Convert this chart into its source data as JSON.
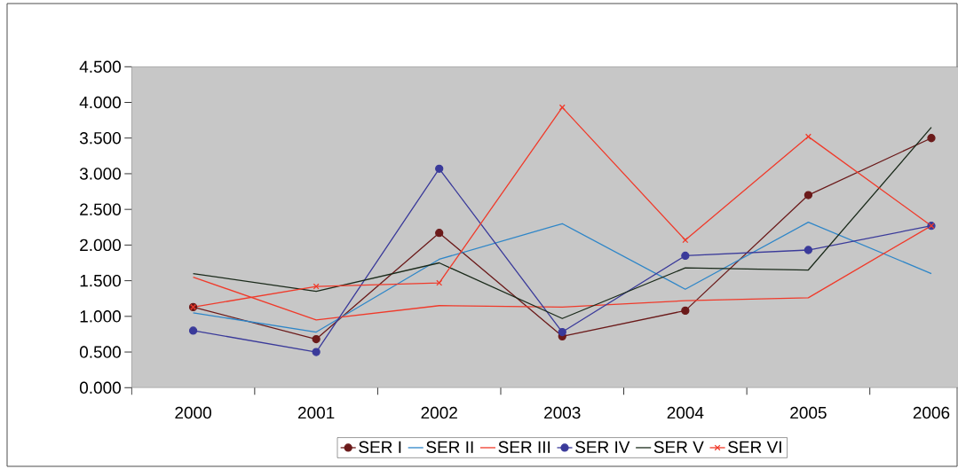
{
  "chart_data": {
    "type": "line",
    "categories": [
      "2000",
      "2001",
      "2002",
      "2003",
      "2004",
      "2005",
      "2006"
    ],
    "series": [
      {
        "name": "SER I",
        "color": "#6b1a1a",
        "marker": "circle",
        "values": [
          1.13,
          0.68,
          2.17,
          0.72,
          1.08,
          2.7,
          3.5
        ]
      },
      {
        "name": "SER II",
        "color": "#2e86c8",
        "marker": "none",
        "values": [
          1.05,
          0.78,
          1.8,
          2.3,
          1.38,
          2.32,
          1.6
        ]
      },
      {
        "name": "SER III",
        "color": "#f03a2a",
        "marker": "none",
        "values": [
          1.55,
          0.95,
          1.15,
          1.13,
          1.22,
          1.26,
          2.27
        ]
      },
      {
        "name": "SER IV",
        "color": "#3a3a9a",
        "marker": "circle",
        "values": [
          0.8,
          0.5,
          3.07,
          0.78,
          1.85,
          1.93,
          2.27
        ]
      },
      {
        "name": "SER V",
        "color": "#1a2a1a",
        "marker": "none",
        "values": [
          1.6,
          1.35,
          1.75,
          0.97,
          1.68,
          1.65,
          3.65
        ]
      },
      {
        "name": "SER VI",
        "color": "#f03a2a",
        "marker": "cross",
        "values": [
          1.13,
          1.42,
          1.47,
          3.93,
          2.07,
          3.52,
          2.27
        ]
      }
    ],
    "ylim": [
      0,
      4.5
    ],
    "yticks": [
      {
        "value": 0,
        "label": "0.000"
      },
      {
        "value": 0.5,
        "label": "0.500"
      },
      {
        "value": 1,
        "label": "1.000"
      },
      {
        "value": 1.5,
        "label": "1.500"
      },
      {
        "value": 2,
        "label": "2.000"
      },
      {
        "value": 2.5,
        "label": "2.500"
      },
      {
        "value": 3,
        "label": "3.000"
      },
      {
        "value": 3.5,
        "label": "3.500"
      },
      {
        "value": 4,
        "label": "4.000"
      },
      {
        "value": 4.5,
        "label": "4.500"
      }
    ],
    "grid": false,
    "legend": "bottom",
    "line_style": "solid"
  }
}
